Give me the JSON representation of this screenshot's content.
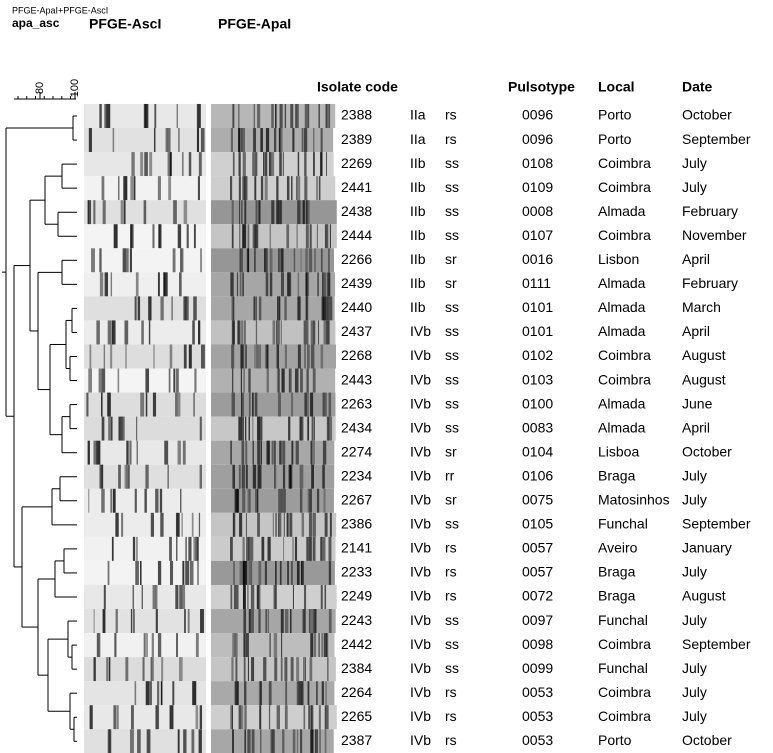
{
  "header": {
    "super": "PFGE-ApaI+PFGE-AscI",
    "key": "apa_asc",
    "gel_left": "PFGE-AscI",
    "gel_right": "PFGE-ApaI"
  },
  "scale": {
    "ticks": [
      80,
      100
    ]
  },
  "columns": {
    "isolate": "Isolate code",
    "pulsotype": "Pulsotype",
    "local": "Local",
    "date": "Date"
  },
  "rows": [
    {
      "code": "2388",
      "serotype": "IIa",
      "source": "rs",
      "pulsotype": "0096",
      "local": "Porto",
      "date": "October"
    },
    {
      "code": "2389",
      "serotype": "IIa",
      "source": "rs",
      "pulsotype": "0096",
      "local": "Porto",
      "date": "September"
    },
    {
      "code": "2269",
      "serotype": "IIb",
      "source": "ss",
      "pulsotype": "0108",
      "local": "Coimbra",
      "date": "July"
    },
    {
      "code": "2441",
      "serotype": "IIb",
      "source": "ss",
      "pulsotype": "0109",
      "local": "Coimbra",
      "date": "July"
    },
    {
      "code": "2438",
      "serotype": "IIb",
      "source": "ss",
      "pulsotype": "0008",
      "local": "Almada",
      "date": "February"
    },
    {
      "code": "2444",
      "serotype": "IIb",
      "source": "ss",
      "pulsotype": "0107",
      "local": "Coimbra",
      "date": "November"
    },
    {
      "code": "2266",
      "serotype": "IIb",
      "source": "sr",
      "pulsotype": "0016",
      "local": "Lisbon",
      "date": "April"
    },
    {
      "code": "2439",
      "serotype": "IIb",
      "source": "sr",
      "pulsotype": "0111",
      "local": "Almada",
      "date": "February"
    },
    {
      "code": "2440",
      "serotype": "IIb",
      "source": "ss",
      "pulsotype": "0101",
      "local": "Almada",
      "date": "March"
    },
    {
      "code": "2437",
      "serotype": "IVb",
      "source": "ss",
      "pulsotype": "0101",
      "local": "Almada",
      "date": "April"
    },
    {
      "code": "2268",
      "serotype": "IVb",
      "source": "ss",
      "pulsotype": "0102",
      "local": "Coimbra",
      "date": "August"
    },
    {
      "code": "2443",
      "serotype": "IVb",
      "source": "ss",
      "pulsotype": "0103",
      "local": "Coimbra",
      "date": "August"
    },
    {
      "code": "2263",
      "serotype": "IVb",
      "source": "ss",
      "pulsotype": "0100",
      "local": "Almada",
      "date": "June"
    },
    {
      "code": "2434",
      "serotype": "IVb",
      "source": "ss",
      "pulsotype": "0083",
      "local": "Almada",
      "date": "April"
    },
    {
      "code": "2274",
      "serotype": "IVb",
      "source": "sr",
      "pulsotype": "0104",
      "local": "Lisboa",
      "date": "October"
    },
    {
      "code": "2234",
      "serotype": "IVb",
      "source": "rr",
      "pulsotype": "0106",
      "local": "Braga",
      "date": "July"
    },
    {
      "code": "2267",
      "serotype": "IVb",
      "source": "sr",
      "pulsotype": "0075",
      "local": "Matosinhos",
      "date": "July"
    },
    {
      "code": "2386",
      "serotype": "IVb",
      "source": "ss",
      "pulsotype": "0105",
      "local": "Funchal",
      "date": "September"
    },
    {
      "code": "2141",
      "serotype": "IVb",
      "source": "rs",
      "pulsotype": "0057",
      "local": "Aveiro",
      "date": "January"
    },
    {
      "code": "2233",
      "serotype": "IVb",
      "source": "rs",
      "pulsotype": "0057",
      "local": "Braga",
      "date": "July"
    },
    {
      "code": "2249",
      "serotype": "IVb",
      "source": "rs",
      "pulsotype": "0072",
      "local": "Braga",
      "date": "August"
    },
    {
      "code": "2243",
      "serotype": "IVb",
      "source": "ss",
      "pulsotype": "0097",
      "local": "Funchal",
      "date": "July"
    },
    {
      "code": "2442",
      "serotype": "IVb",
      "source": "ss",
      "pulsotype": "0098",
      "local": "Coimbra",
      "date": "September"
    },
    {
      "code": "2384",
      "serotype": "IVb",
      "source": "ss",
      "pulsotype": "0099",
      "local": "Funchal",
      "date": "July"
    },
    {
      "code": "2264",
      "serotype": "IVb",
      "source": "rs",
      "pulsotype": "0053",
      "local": "Coimbra",
      "date": "July"
    },
    {
      "code": "2265",
      "serotype": "IVb",
      "source": "rs",
      "pulsotype": "0053",
      "local": "Coimbra",
      "date": "July"
    },
    {
      "code": "2387",
      "serotype": "IVb",
      "source": "rs",
      "pulsotype": "0053",
      "local": "Porto",
      "date": "October"
    }
  ]
}
